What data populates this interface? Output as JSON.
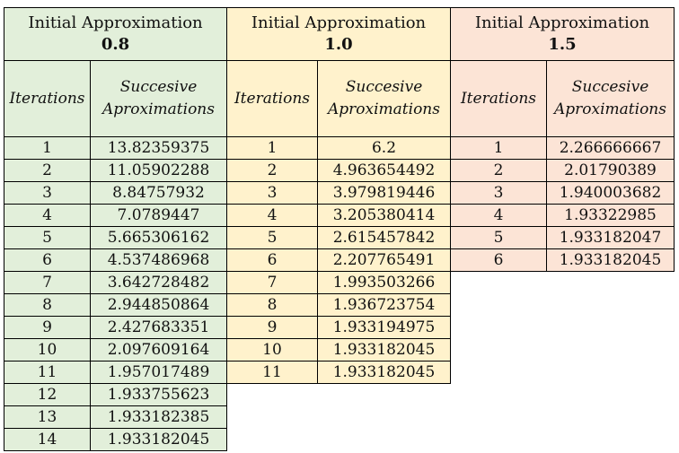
{
  "headers": {
    "iterations": "Iterations",
    "approx_line1": "Succesive",
    "approx_line2": "Aproximations",
    "initial_label": "Initial Approximation"
  },
  "tables": [
    {
      "initial": "0.8",
      "rows": [
        [
          "1",
          "13.82359375"
        ],
        [
          "2",
          "11.05902288"
        ],
        [
          "3",
          "8.84757932"
        ],
        [
          "4",
          "7.0789447"
        ],
        [
          "5",
          "5.665306162"
        ],
        [
          "6",
          "4.537486968"
        ],
        [
          "7",
          "3.642728482"
        ],
        [
          "8",
          "2.944850864"
        ],
        [
          "9",
          "2.427683351"
        ],
        [
          "10",
          "2.097609164"
        ],
        [
          "11",
          "1.957017489"
        ],
        [
          "12",
          "1.933755623"
        ],
        [
          "13",
          "1.933182385"
        ],
        [
          "14",
          "1.933182045"
        ]
      ]
    },
    {
      "initial": "1.0",
      "rows": [
        [
          "1",
          "6.2"
        ],
        [
          "2",
          "4.963654492"
        ],
        [
          "3",
          "3.979819446"
        ],
        [
          "4",
          "3.205380414"
        ],
        [
          "5",
          "2.615457842"
        ],
        [
          "6",
          "2.207765491"
        ],
        [
          "7",
          "1.993503266"
        ],
        [
          "8",
          "1.936723754"
        ],
        [
          "9",
          "1.933194975"
        ],
        [
          "10",
          "1.933182045"
        ],
        [
          "11",
          "1.933182045"
        ]
      ]
    },
    {
      "initial": "1.5",
      "rows": [
        [
          "1",
          "2.266666667"
        ],
        [
          "2",
          "2.01790389"
        ],
        [
          "3",
          "1.940003682"
        ],
        [
          "4",
          "1.93322985"
        ],
        [
          "5",
          "1.933182047"
        ],
        [
          "6",
          "1.933182045"
        ]
      ]
    }
  ]
}
